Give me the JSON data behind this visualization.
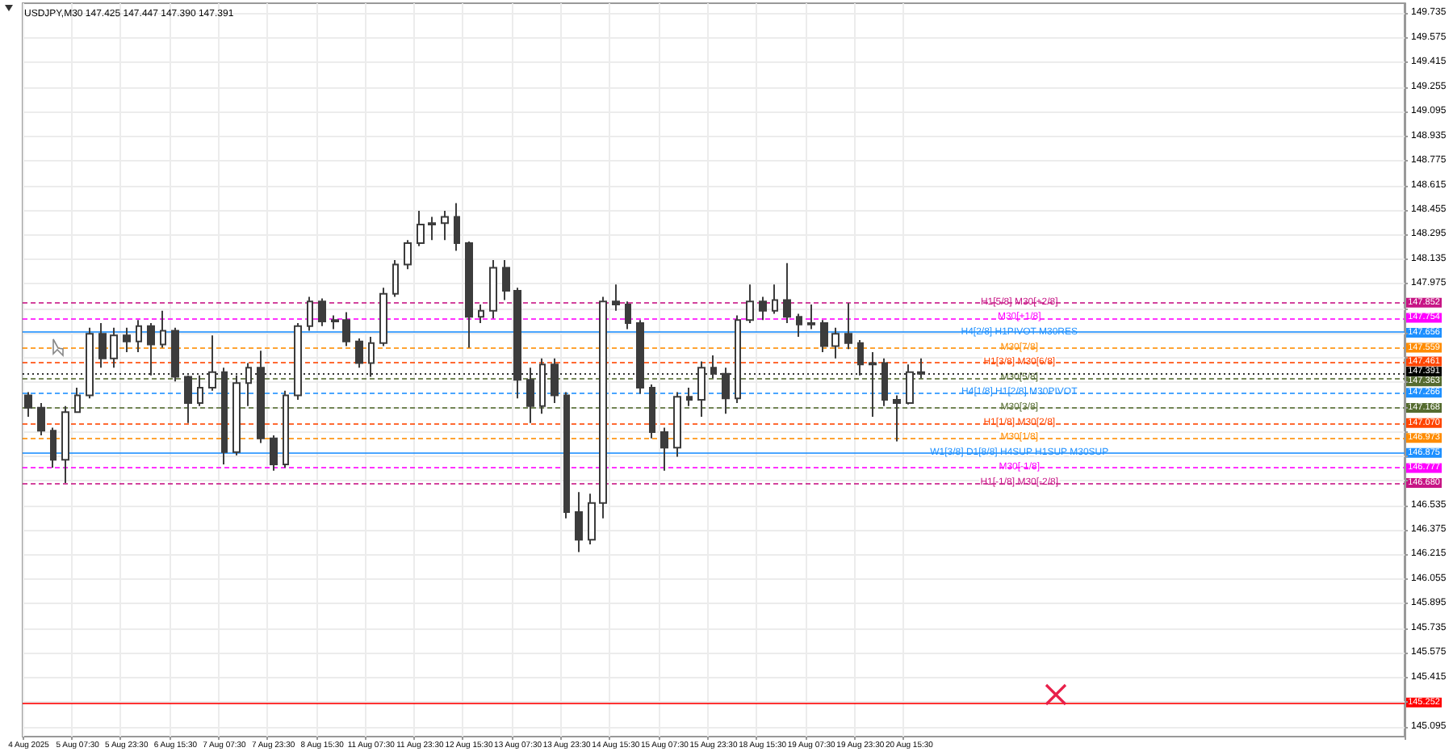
{
  "chart_data": {
    "type": "candlestick",
    "title": "USDJPY,M30 147.425 147.447 147.390 147.391",
    "color": "#3c3c3c",
    "categories": [
      "4 Aug 2025",
      null,
      null,
      null,
      "5 Aug 07:30",
      null,
      null,
      null,
      "5 Aug 23:30",
      null,
      null,
      null,
      "6 Aug 15:30",
      null,
      null,
      null,
      "7 Aug 07:30",
      null,
      null,
      null,
      "7 Aug 23:30",
      null,
      null,
      null,
      "8 Aug 15:30",
      null,
      null,
      null,
      "11 Aug 07:30",
      null,
      null,
      null,
      "11 Aug 23:30",
      null,
      null,
      null,
      "12 Aug 15:30",
      null,
      null,
      null,
      "13 Aug 07:30",
      null,
      null,
      null,
      "13 Aug 23:30",
      null,
      null,
      null,
      "14 Aug 15:30",
      null,
      null,
      null,
      "15 Aug 07:30",
      null,
      null,
      null,
      "15 Aug 23:30",
      null,
      null,
      null,
      "18 Aug 15:30",
      null,
      null,
      null,
      "19 Aug 07:30",
      null,
      null,
      null,
      "19 Aug 23:30",
      null,
      null,
      null,
      "20 Aug 15:30",
      null,
      null,
      null,
      null,
      null,
      null,
      null,
      null,
      null,
      null,
      null,
      null,
      null,
      null,
      null,
      null,
      null,
      null,
      null,
      null,
      null,
      null,
      null,
      null,
      null,
      null,
      null,
      null,
      null,
      null,
      null,
      null,
      null,
      null,
      null,
      null,
      null,
      null,
      null,
      null
    ],
    "ohlc": [
      [
        147.25,
        147.27,
        147.11,
        147.17
      ],
      [
        147.17,
        147.2,
        146.99,
        147.02
      ],
      [
        147.02,
        147.04,
        146.78,
        146.83
      ],
      [
        146.83,
        147.18,
        146.68,
        147.14
      ],
      [
        147.14,
        147.3,
        147.14,
        147.25
      ],
      [
        147.25,
        147.69,
        147.23,
        147.65
      ],
      [
        147.65,
        147.72,
        147.43,
        147.49
      ],
      [
        147.49,
        147.69,
        147.43,
        147.64
      ],
      [
        147.64,
        147.69,
        147.53,
        147.6
      ],
      [
        147.6,
        147.74,
        147.53,
        147.7
      ],
      [
        147.7,
        147.72,
        147.38,
        147.58
      ],
      [
        147.58,
        147.8,
        147.56,
        147.67
      ],
      [
        147.67,
        147.69,
        147.34,
        147.37
      ],
      [
        147.37,
        147.38,
        147.07,
        147.2
      ],
      [
        147.2,
        147.38,
        147.18,
        147.3
      ],
      [
        147.3,
        147.64,
        147.28,
        147.4
      ],
      [
        147.4,
        147.43,
        146.8,
        146.88
      ],
      [
        146.88,
        147.38,
        146.86,
        147.33
      ],
      [
        147.33,
        147.46,
        147.18,
        147.43
      ],
      [
        147.43,
        147.54,
        146.94,
        146.97
      ],
      [
        146.97,
        146.99,
        146.76,
        146.8
      ],
      [
        146.8,
        147.28,
        146.78,
        147.25
      ],
      [
        147.25,
        147.72,
        147.22,
        147.7
      ],
      [
        147.7,
        147.89,
        147.67,
        147.86
      ],
      [
        147.86,
        147.88,
        147.7,
        147.73
      ],
      [
        147.73,
        147.77,
        147.68,
        147.74
      ],
      [
        147.74,
        147.79,
        147.57,
        147.6
      ],
      [
        147.6,
        147.62,
        147.43,
        147.46
      ],
      [
        147.46,
        147.63,
        147.37,
        147.59
      ],
      [
        147.59,
        147.95,
        147.57,
        147.91
      ],
      [
        147.91,
        148.13,
        147.89,
        148.1
      ],
      [
        148.1,
        148.26,
        148.07,
        148.24
      ],
      [
        148.24,
        148.45,
        148.22,
        148.36
      ],
      [
        148.36,
        148.41,
        148.26,
        148.37
      ],
      [
        148.37,
        148.45,
        148.26,
        148.41
      ],
      [
        148.41,
        148.5,
        148.19,
        148.24
      ],
      [
        148.24,
        148.25,
        147.56,
        147.76
      ],
      [
        147.76,
        147.84,
        147.72,
        147.8
      ],
      [
        147.8,
        148.13,
        147.75,
        148.08
      ],
      [
        148.08,
        148.13,
        147.87,
        147.93
      ],
      [
        147.93,
        147.95,
        147.23,
        147.35
      ],
      [
        147.35,
        147.43,
        147.07,
        147.18
      ],
      [
        147.18,
        147.49,
        147.13,
        147.45
      ],
      [
        147.45,
        147.49,
        147.2,
        147.25
      ],
      [
        147.25,
        147.27,
        146.45,
        146.49
      ],
      [
        146.49,
        146.62,
        146.23,
        146.31
      ],
      [
        146.31,
        146.61,
        146.28,
        146.55
      ],
      [
        146.55,
        147.89,
        146.45,
        147.86
      ],
      [
        147.86,
        147.97,
        147.8,
        147.84
      ],
      [
        147.84,
        147.86,
        147.68,
        147.72
      ],
      [
        147.72,
        147.74,
        147.26,
        147.3
      ],
      [
        147.3,
        147.32,
        146.97,
        147.01
      ],
      [
        147.01,
        147.04,
        146.76,
        146.91
      ],
      [
        146.91,
        147.27,
        146.85,
        147.24
      ],
      [
        147.24,
        147.3,
        147.18,
        147.22
      ],
      [
        147.22,
        147.47,
        147.11,
        147.43
      ],
      [
        147.43,
        147.51,
        147.36,
        147.39
      ],
      [
        147.39,
        147.43,
        147.13,
        147.23
      ],
      [
        147.23,
        147.77,
        147.2,
        147.74
      ],
      [
        147.74,
        147.97,
        147.72,
        147.86
      ],
      [
        147.86,
        147.89,
        147.74,
        147.8
      ],
      [
        147.8,
        147.97,
        147.78,
        147.87
      ],
      [
        147.87,
        148.11,
        147.72,
        147.76
      ],
      [
        147.76,
        147.78,
        147.63,
        147.71
      ],
      [
        147.71,
        147.84,
        147.68,
        147.72
      ],
      [
        147.72,
        147.74,
        147.53,
        147.57
      ],
      [
        147.57,
        147.69,
        147.49,
        147.65
      ],
      [
        147.65,
        147.85,
        147.55,
        147.59
      ],
      [
        147.59,
        147.61,
        147.38,
        147.45
      ],
      [
        147.45,
        147.53,
        147.11,
        147.46
      ],
      [
        147.46,
        147.49,
        147.18,
        147.22
      ],
      [
        147.22,
        147.25,
        146.95,
        147.2
      ],
      [
        147.2,
        147.45,
        147.19,
        147.4
      ],
      [
        147.4,
        147.49,
        147.36,
        147.39
      ],
      null,
      null,
      null,
      null,
      null,
      null,
      null,
      null,
      null,
      null,
      null,
      null,
      null,
      null,
      null,
      null,
      null,
      null,
      null,
      null,
      null,
      null,
      null,
      null,
      null,
      null,
      null,
      null,
      null,
      null,
      null,
      null,
      null,
      null,
      null,
      null,
      null,
      null,
      null
    ],
    "ylim": [
      145.03,
      149.8
    ],
    "yticks": [
      145.095,
      {
        "value": 145.255,
        "label": null
      },
      145.415,
      145.575,
      145.735,
      145.895,
      146.055,
      146.215,
      146.375,
      146.535,
      {
        "value": 146.695,
        "label": null
      },
      {
        "value": 146.855,
        "label": null
      },
      {
        "value": 147.015,
        "label": null
      },
      {
        "value": 147.175,
        "label": null
      },
      {
        "value": 147.335,
        "label": null
      },
      {
        "value": 147.495,
        "label": null
      },
      {
        "value": 147.655,
        "label": null
      },
      {
        "value": 147.815,
        "label": null
      },
      147.975,
      148.135,
      148.295,
      148.455,
      148.615,
      148.775,
      148.935,
      149.095,
      149.255,
      149.415,
      149.575,
      149.735
    ],
    "grid": true,
    "annotations": [
      "147.852",
      "147.754",
      "147.656",
      "147.559",
      "147.461",
      "147.391",
      "147.363",
      "147.266",
      "147.168",
      "147.070",
      "146.973",
      "146.875",
      "146.777",
      "146.680",
      "145.252"
    ],
    "ref_lines": [
      {
        "axis": "y",
        "value": 147.852,
        "label": "H1[5/8] M30[+2/8]",
        "color": "#c71585",
        "line_style": "dashed"
      },
      {
        "axis": "y",
        "value": 147.754,
        "label": "M30[+1/8]",
        "color": "#ff00ff",
        "line_style": "dashed"
      },
      {
        "axis": "y",
        "value": 147.656,
        "label": "H4[2/8] H1PIVOT M30RES",
        "color": "#1e90ff",
        "line_style": "solid"
      },
      {
        "axis": "y",
        "value": 147.559,
        "label": "M30[7/8]",
        "color": "#ff8c00",
        "line_style": "dashed"
      },
      {
        "axis": "y",
        "value": 147.461,
        "label": "H1[3/8] M30[6/8]",
        "color": "#ff4500",
        "line_style": "dashed"
      },
      {
        "axis": "y",
        "value": 147.391,
        "label": null,
        "color": "#000000",
        "line_style": "dotted"
      },
      {
        "axis": "y",
        "value": 147.363,
        "label": "M30[5/8]",
        "color": "#556b2f",
        "line_style": "dashed"
      },
      {
        "axis": "y",
        "value": 147.266,
        "label": "H4[1/8] H1[2/8] M30PIVOT",
        "color": "#1e90ff",
        "line_style": "dashed"
      },
      {
        "axis": "y",
        "value": 147.168,
        "label": "M30[3/8]",
        "color": "#556b2f",
        "line_style": "dashed"
      },
      {
        "axis": "y",
        "value": 147.07,
        "label": "H1[1/8] M30[2/8]",
        "color": "#ff4500",
        "line_style": "dashed"
      },
      {
        "axis": "y",
        "value": 146.973,
        "label": "M30[1/8]",
        "color": "#ff8c00",
        "line_style": "dashed"
      },
      {
        "axis": "y",
        "value": 146.875,
        "label": "W1[3/8] D1[8/8] H4SUP H1SUP M30SUP",
        "color": "#1e90ff",
        "line_style": "solid"
      },
      {
        "axis": "y",
        "value": 146.777,
        "label": "M30[-1/8]",
        "color": "#ff00ff",
        "line_style": "dashed"
      },
      {
        "axis": "y",
        "value": 146.68,
        "label": "H1[-1/8] M30[-2/8]",
        "color": "#c71585",
        "line_style": "dashed"
      },
      {
        "axis": "y",
        "value": 145.252,
        "label": null,
        "color": "#ff0000",
        "line_style": "solid"
      }
    ]
  }
}
